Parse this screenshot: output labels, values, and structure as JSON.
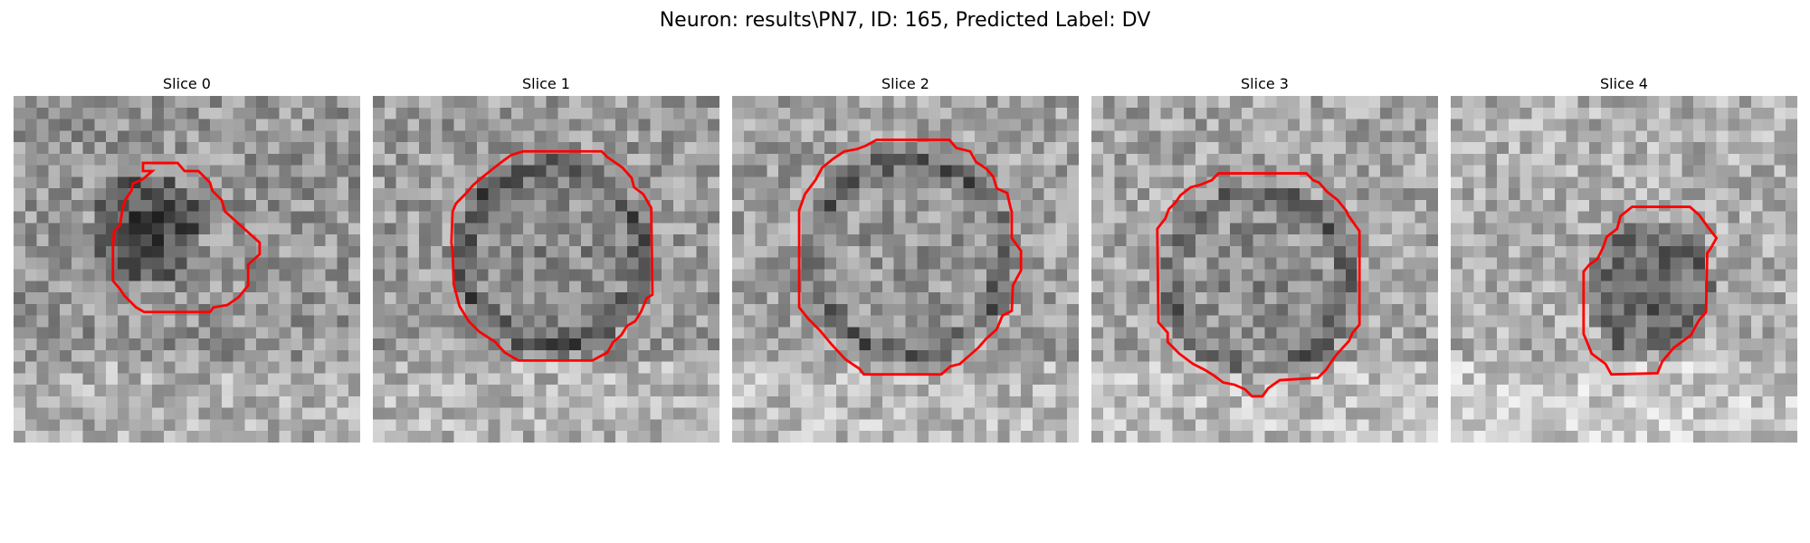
{
  "figure": {
    "title": "Neuron: results\\PN7, ID: 165, Predicted Label: DV",
    "contour_color": "#ff0000"
  },
  "slices": [
    {
      "title": "Slice 0"
    },
    {
      "title": "Slice 1"
    },
    {
      "title": "Slice 2"
    },
    {
      "title": "Slice 3"
    },
    {
      "title": "Slice 4"
    }
  ]
}
